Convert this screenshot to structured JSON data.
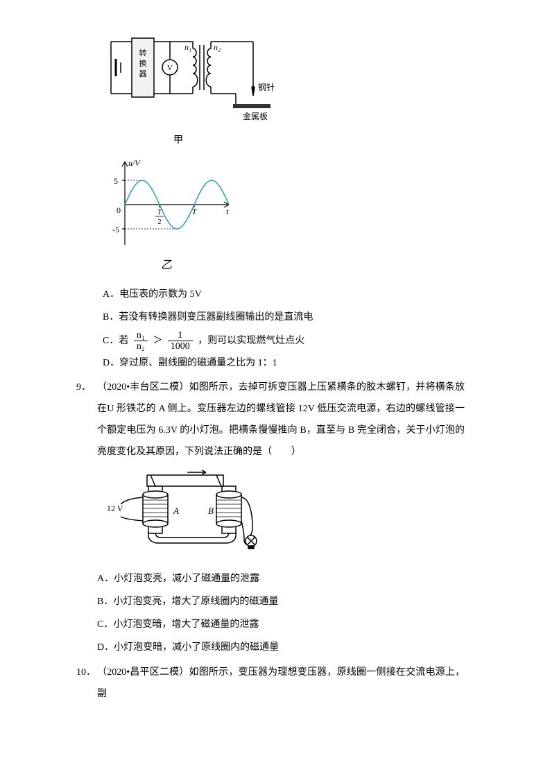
{
  "circuit": {
    "converter_label": "转\n换\n器",
    "voltmeter_label": "V",
    "n1_label": "n₁",
    "n2_label": "n₂",
    "needle_label": "钢针",
    "plate_label": "金属板",
    "caption": "甲"
  },
  "sine_chart": {
    "type": "line",
    "y_label": "u/V",
    "x_label": "t",
    "y_ticks": [
      5,
      0,
      -5
    ],
    "x_ticks": [
      "T/2",
      "T"
    ],
    "amplitude": 5,
    "line_color": "#2a9db8",
    "axis_color": "#000000",
    "background_color": "#ffffff",
    "xlim": [
      0,
      1.5
    ],
    "ylim": [
      -6,
      6
    ],
    "line_width": 1.5,
    "caption": "乙"
  },
  "q8_options": {
    "A": "A．电压表的示数为 5V",
    "B": "B．若没有转换器则变压器副线圈输出的是直流电",
    "C_prefix": "C．若",
    "C_frac1_num": "n₁",
    "C_frac1_den": "n₂",
    "C_gt": "＞",
    "C_frac2_num": "1",
    "C_frac2_den": "1000",
    "C_suffix": "，则可以实现燃气灶点火",
    "D": "D．穿过原、副线圈的磁通量之比为 1：1"
  },
  "q9": {
    "num": "9．",
    "source": "（2020•丰台区二模）",
    "stem": "如图所示，去掉可拆变压器上压紧横条的胶木螺钉，并将横条放在U 形铁芯的 A 侧上。变压器左边的螺线管接 12V 低压交流电源，右边的螺线管接一个额定电压为 6.3V 的小灯泡。把横条慢慢推向 B，直至与 B 完全闭合，关于小灯泡的亮度变化及其原因，下列说法正确的是（　　）",
    "voltage_label": "12 V",
    "coil_A": "A",
    "coil_B": "B",
    "options": {
      "A": "A．小灯泡变亮，减小了磁通量的泄露",
      "B": "B．小灯泡变亮，增大了原线圈内的磁通量",
      "C": "C．小灯泡变暗，增大了磁通量的泄露",
      "D": "D．小灯泡变暗，减小了原线圈内的磁通量"
    }
  },
  "q10": {
    "num": "10．",
    "source": "（2020•昌平区二模）",
    "stem": "如图所示，变压器为理想变压器，原线圈一侧接在交流电源上，副"
  }
}
